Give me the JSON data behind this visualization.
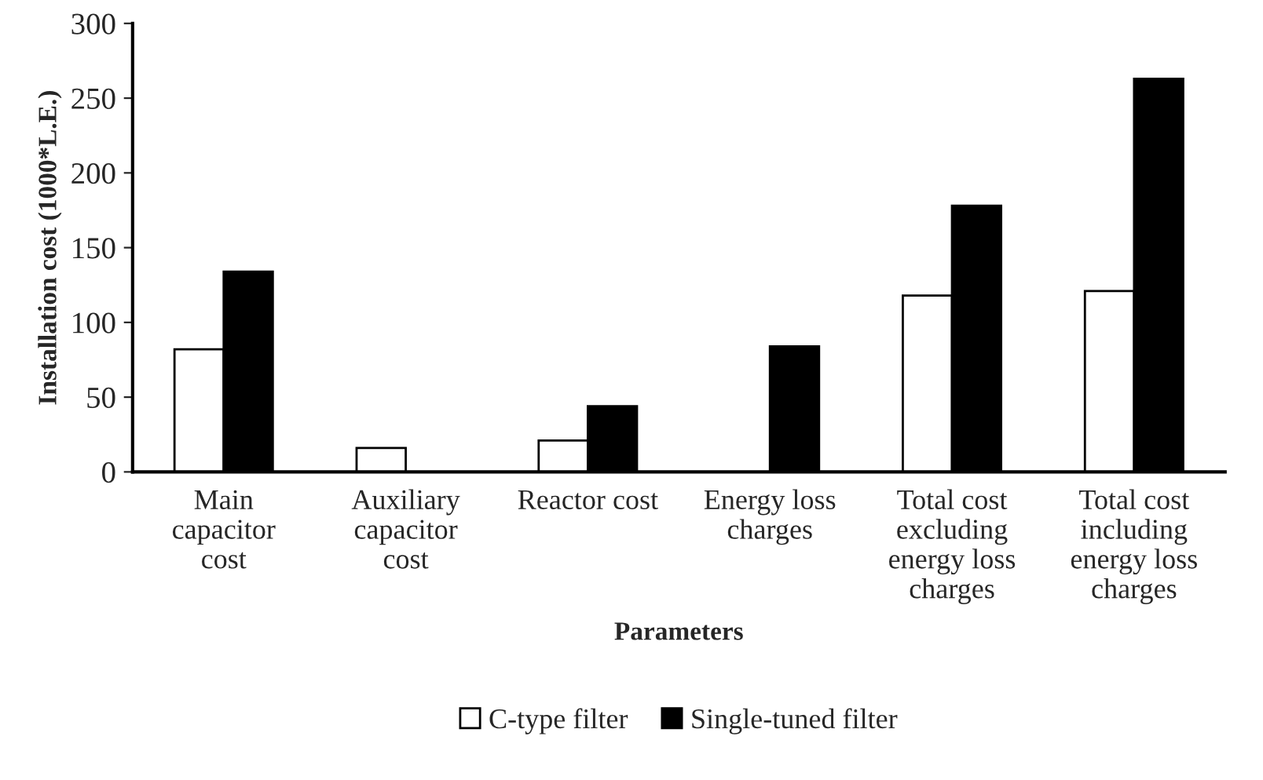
{
  "chart_data": {
    "type": "bar",
    "xlabel": "Parameters",
    "ylabel": "Installation cost (1000*L.E.)",
    "categories": [
      "Main\ncapacitor\ncost",
      "Auxiliary\ncapacitor\ncost",
      "Reactor cost",
      "Energy loss\ncharges",
      "Total cost\nexcluding\nenergy loss\ncharges",
      "Total cost\nincluding\nenergy loss\ncharges"
    ],
    "series": [
      {
        "name": "C-type filter",
        "color": "#ffffff",
        "values": [
          82,
          16,
          21,
          0,
          118,
          121
        ]
      },
      {
        "name": "Single-tuned filter",
        "color": "#000000",
        "values": [
          134,
          0,
          44,
          84,
          178,
          263
        ]
      }
    ],
    "ylim": [
      0,
      300
    ],
    "yticks": [
      0,
      50,
      100,
      150,
      200,
      250,
      300
    ],
    "grid": false,
    "legend": "bottom"
  }
}
